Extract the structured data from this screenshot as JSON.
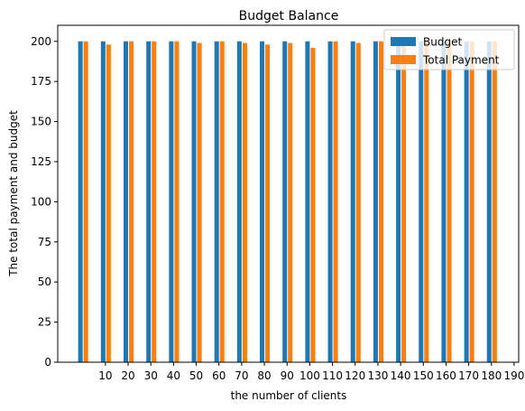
{
  "chart_data": {
    "type": "bar",
    "title": "Budget Balance",
    "xlabel": "the number of clients",
    "ylabel": "The total payment and budget",
    "ylim": [
      0,
      210
    ],
    "xlim": [
      -11,
      192
    ],
    "yticks": [
      0,
      25,
      50,
      75,
      100,
      125,
      150,
      175,
      200
    ],
    "xticks": [
      10,
      20,
      30,
      40,
      50,
      60,
      70,
      80,
      90,
      100,
      110,
      120,
      130,
      140,
      150,
      160,
      170,
      180,
      190
    ],
    "grid": false,
    "legend_position": "top-right",
    "x": [
      0,
      10,
      20,
      30,
      40,
      50,
      60,
      70,
      80,
      90,
      100,
      110,
      120,
      130,
      140,
      150,
      160,
      170,
      180
    ],
    "series": [
      {
        "name": "Budget",
        "color": "#1f77b4",
        "values": [
          200,
          200,
          200,
          200,
          200,
          200,
          200,
          200,
          200,
          200,
          200,
          200,
          200,
          200,
          200,
          200,
          200,
          200,
          200
        ]
      },
      {
        "name": "Total Payment",
        "color": "#ff7f0e",
        "values": [
          200,
          198,
          200,
          200,
          200,
          199,
          200,
          199,
          198,
          199,
          196,
          200,
          199,
          200,
          200,
          200,
          200,
          200,
          200
        ]
      }
    ]
  }
}
